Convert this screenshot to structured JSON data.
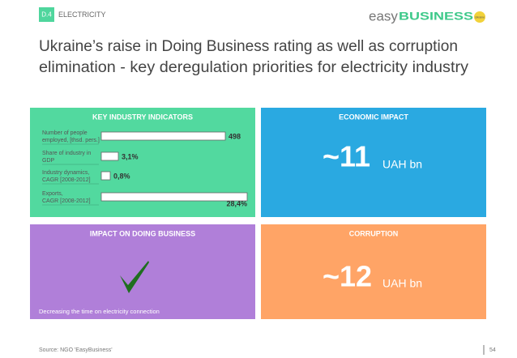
{
  "header": {
    "tag": "D.4",
    "section": "ELECTRICITY",
    "logo_left": "easy",
    "logo_right": "BUSINESS",
    "logo_badge": "Ukraine"
  },
  "title": [
    "Ukraine’s raise in Doing Business rating as well as corruption",
    "elimination - key deregulation priorities for electricity industry"
  ],
  "panels": {
    "indicators": {
      "title": "KEY INDUSTRY INDICATORS",
      "rows": [
        {
          "label": [
            "Number of people",
            "employed, [thsd. pers.]"
          ],
          "value": "498"
        },
        {
          "label": [
            "Share of industry in",
            "GDP"
          ],
          "value": "3,1%"
        },
        {
          "label": [
            "Industry dynamics,",
            "CAGR [2008-2012]"
          ],
          "value": "0,8%"
        },
        {
          "label": [
            "Exports,",
            "CAGR [2008-2012]"
          ],
          "value": "28,4%"
        }
      ]
    },
    "economic": {
      "title": "ECONOMIC IMPACT",
      "value": "~11",
      "unit": "UAH bn"
    },
    "doing_business": {
      "title": "IMPACT ON DOING BUSINESS",
      "note": "Decreasing the time on electricity connection"
    },
    "corruption": {
      "title": "CORRUPTION",
      "value": "~12",
      "unit": "UAH bn"
    }
  },
  "footer": {
    "source": "Source: NGO 'EasyBusiness'",
    "page": "54"
  }
}
